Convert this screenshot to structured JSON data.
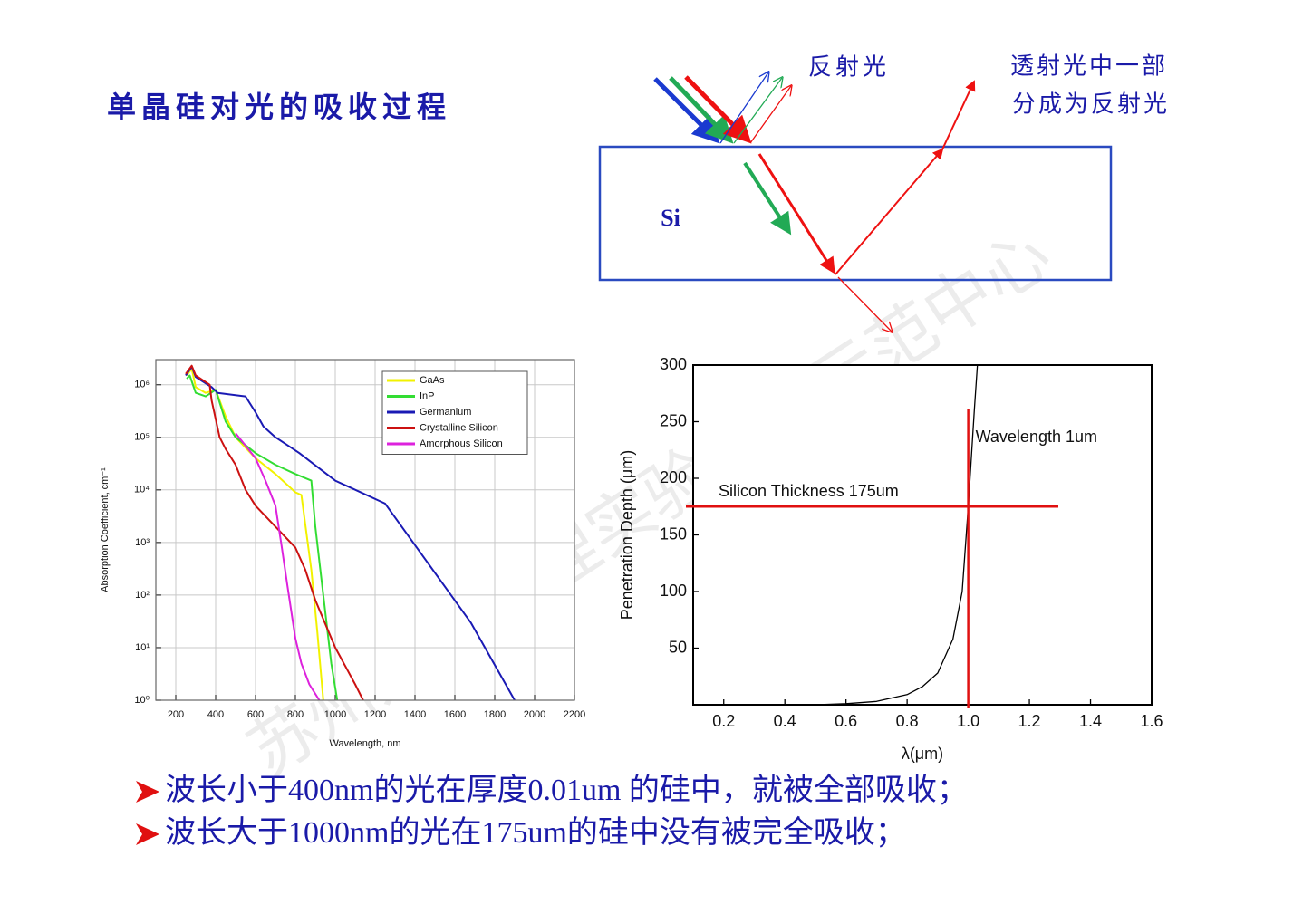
{
  "title": "单晶硅对光的吸收过程",
  "diagram": {
    "material": "Si",
    "reflected": "反射光",
    "transmitted_reflected": [
      "透射光中一部",
      "分成为反射光"
    ]
  },
  "watermark": "苏州大学物理实验教学示范中心",
  "chart_data": [
    {
      "type": "line",
      "log_y": true,
      "grid": true,
      "legend": "upper right",
      "xlabel": "Wavelength, nm",
      "ylabel": "Absorption Coefficient, cm⁻¹",
      "xlim": [
        100,
        2200
      ],
      "xticks": [
        200,
        400,
        600,
        800,
        1000,
        1200,
        1400,
        1600,
        1800,
        2000,
        2200
      ],
      "ylim": [
        1,
        3000000
      ],
      "yticks": [
        {
          "value": 1,
          "label": "10⁰"
        },
        {
          "value": 10,
          "label": "10¹"
        },
        {
          "value": 100,
          "label": "10²"
        },
        {
          "value": 1000,
          "label": "10³"
        },
        {
          "value": 10000,
          "label": "10⁴"
        },
        {
          "value": 100000,
          "label": "10⁵"
        },
        {
          "value": 1000000,
          "label": "10⁶"
        }
      ],
      "series": [
        {
          "name": "GaAs",
          "color": "#f2f200",
          "x": [
            255,
            280,
            300,
            350,
            400,
            450,
            500,
            600,
            700,
            800,
            830,
            880,
            910,
            940
          ],
          "values": [
            1500000,
            2000000,
            900000,
            700000,
            800000,
            250000,
            100000,
            40000,
            20000,
            9000,
            8000,
            300,
            20,
            1
          ]
        },
        {
          "name": "InP",
          "color": "#33dd33",
          "x": [
            255,
            270,
            300,
            350,
            400,
            450,
            500,
            600,
            700,
            800,
            880,
            900,
            940,
            980,
            1010
          ],
          "values": [
            1300000,
            1500000,
            700000,
            600000,
            800000,
            200000,
            100000,
            50000,
            30000,
            20000,
            15000,
            2000,
            100,
            5,
            1
          ]
        },
        {
          "name": "Germanium",
          "color": "#1a1ab4",
          "x": [
            250,
            280,
            300,
            380,
            410,
            550,
            600,
            640,
            700,
            820,
            1000,
            1250,
            1680,
            1900
          ],
          "values": [
            1500000,
            2200000,
            1400000,
            900000,
            700000,
            600000,
            300000,
            160000,
            100000,
            50000,
            15000,
            5500,
            30,
            1
          ]
        },
        {
          "name": "Crystalline Silicon",
          "color": "#cc1111",
          "x": [
            250,
            280,
            300,
            370,
            380,
            420,
            450,
            500,
            550,
            600,
            700,
            800,
            850,
            900,
            1000,
            1100,
            1140
          ],
          "values": [
            1600000,
            2300000,
            1500000,
            1000000,
            500000,
            100000,
            60000,
            30000,
            10000,
            5000,
            2000,
            800,
            300,
            80,
            10,
            2,
            1
          ]
        },
        {
          "name": "Amorphous Silicon",
          "color": "#dd22dd",
          "x": [
            500,
            600,
            650,
            700,
            730,
            760,
            800,
            830,
            870,
            920
          ],
          "values": [
            120000,
            40000,
            15000,
            5000,
            900,
            150,
            15,
            5,
            2,
            1
          ]
        }
      ]
    },
    {
      "type": "line",
      "log_y": false,
      "grid": false,
      "xlabel": "λ(μm)",
      "ylabel": "Penetration Depth (μm)",
      "xlim": [
        0.1,
        1.6
      ],
      "xticks": [
        0.2,
        0.4,
        0.6,
        0.8,
        {
          "value": 1,
          "label": "1.0"
        },
        1.2,
        1.4,
        1.6
      ],
      "ylim": [
        0,
        300
      ],
      "yticks": [
        50,
        100,
        150,
        200,
        250,
        300
      ],
      "series": [
        {
          "color": "#000000",
          "x": [
            0.5,
            0.6,
            0.7,
            0.8,
            0.85,
            0.9,
            0.95,
            0.98,
            1.0,
            1.02,
            1.03
          ],
          "values": [
            0,
            1,
            3,
            9,
            16,
            28,
            58,
            100,
            175,
            260,
            300
          ]
        }
      ],
      "reference_lines": [
        {
          "axis": "y",
          "value": 175,
          "label": "Silicon Thickness 175um",
          "color": "#e01010"
        },
        {
          "axis": "x",
          "value": 1,
          "label": "Wavelength 1um",
          "color": "#e01010"
        }
      ]
    }
  ],
  "bullets": [
    "波长小于400nm的光在厚度0.01um 的硅中，就被全部吸收；",
    "波长大于1000nm的光在175um的硅中没有被完全吸收；"
  ]
}
